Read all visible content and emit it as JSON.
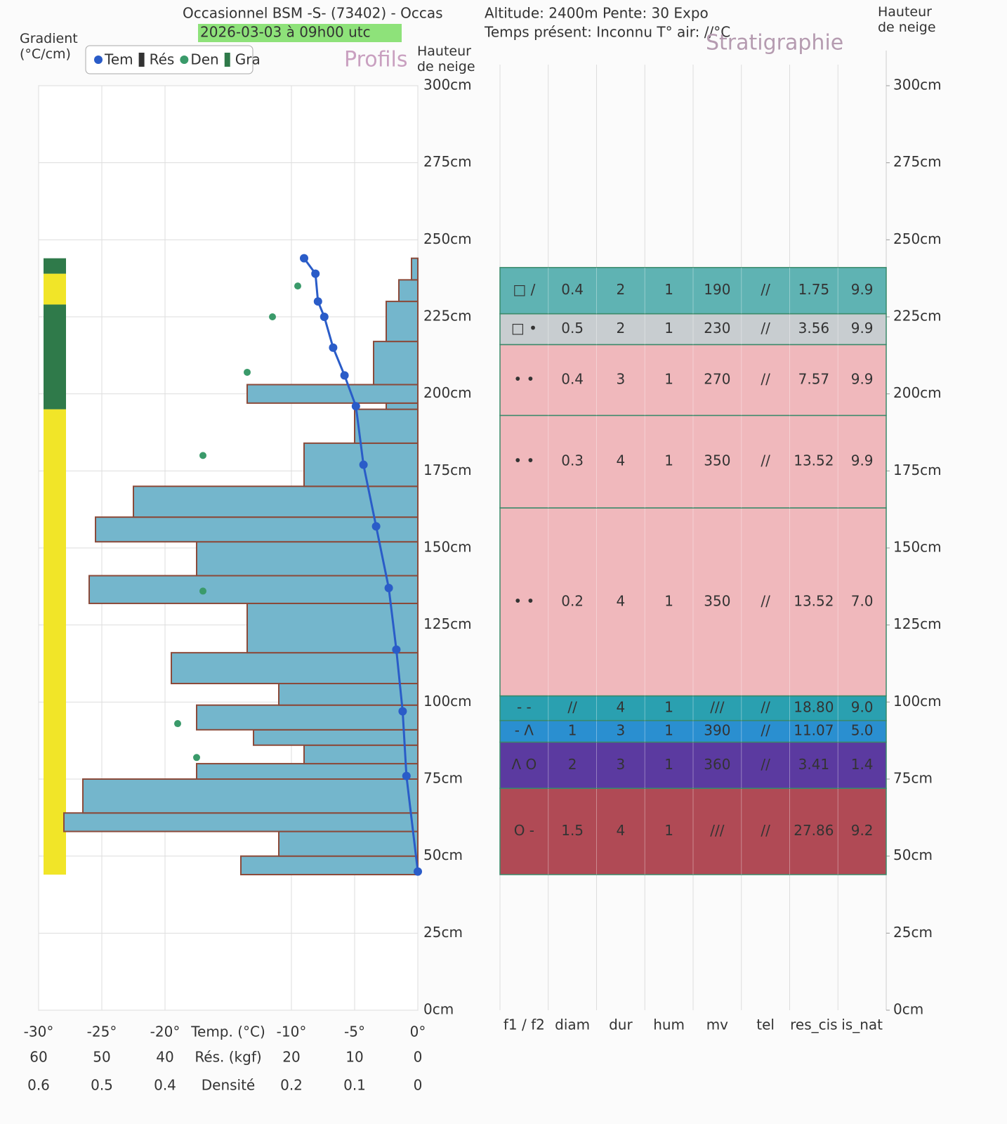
{
  "header": {
    "line1": "Occasionnel BSM -S- (73402) - Occas",
    "line2": "2026-03-03 à 09h00 utc",
    "line3": "Altitude: 2400m Pente: 30 Expo",
    "line4": "Temps présent: Inconnu T° air: //°C"
  },
  "chart_data": [
    {
      "type": "profile",
      "title": "Profils",
      "ylabel": "Hauteur de neige",
      "ylim": [
        0,
        300
      ],
      "yticks": [
        {
          "value": 0,
          "label": "0cm"
        },
        {
          "value": 25,
          "label": "25cm"
        },
        {
          "value": 50,
          "label": "50cm"
        },
        {
          "value": 75,
          "label": "75cm"
        },
        {
          "value": 100,
          "label": "100cm"
        },
        {
          "value": 125,
          "label": "125cm"
        },
        {
          "value": 150,
          "label": "150cm"
        },
        {
          "value": 175,
          "label": "175cm"
        },
        {
          "value": 200,
          "label": "200cm"
        },
        {
          "value": 225,
          "label": "225cm"
        },
        {
          "value": 250,
          "label": "250cm"
        },
        {
          "value": 275,
          "label": "275cm"
        },
        {
          "value": 300,
          "label": "300cm"
        }
      ],
      "grid": true,
      "temp_axis": {
        "label": "Temp. (°C)",
        "lim": [
          -30,
          0
        ],
        "ticks": [
          {
            "value": -30,
            "label": "-30°"
          },
          {
            "value": -25,
            "label": "-25°"
          },
          {
            "value": -20,
            "label": "-20°"
          },
          {
            "value": -10,
            "label": "-10°"
          },
          {
            "value": -5,
            "label": "-5°"
          },
          {
            "value": 0,
            "label": "0°"
          }
        ]
      },
      "res_axis": {
        "label": "Rés. (kgf)",
        "lim": [
          60,
          0
        ],
        "ticks": [
          60,
          50,
          40,
          20,
          10,
          0
        ]
      },
      "density_axis": {
        "label": "Densité",
        "lim": [
          0.6,
          0
        ],
        "ticks": [
          0.6,
          0.5,
          0.4,
          0.2,
          0.1,
          0
        ]
      },
      "temperature": {
        "name": "Tem",
        "color": "#2a5cc8",
        "heights": [
          244,
          239,
          230,
          225,
          215,
          206,
          196,
          177,
          157,
          137,
          117,
          97,
          76,
          45
        ],
        "values": [
          -9,
          -8.1,
          -7.9,
          -7.4,
          -6.7,
          -5.8,
          -4.9,
          -4.3,
          -3.3,
          -2.3,
          -1.7,
          -1.2,
          -0.9,
          0
        ]
      },
      "resistance": {
        "name": "Rés",
        "color": "#74b6cc",
        "edge": "#8b4a3a",
        "bins": [
          44,
          50,
          58,
          64,
          75,
          80,
          86,
          91,
          99,
          106,
          116,
          132,
          141,
          152,
          160,
          170,
          184,
          195,
          197,
          203,
          217,
          230,
          237,
          244
        ],
        "values": [
          28,
          22,
          56,
          53,
          35,
          18,
          26,
          35,
          22,
          39,
          27,
          52,
          35,
          51,
          45,
          18,
          10,
          5,
          27,
          7,
          5,
          3,
          1
        ]
      },
      "density": {
        "name": "Den",
        "color": "#3a9a6a",
        "heights": [
          235,
          225,
          207,
          180,
          136,
          93,
          82
        ],
        "values": [
          0.19,
          0.23,
          0.27,
          0.34,
          0.34,
          0.38,
          0.35
        ]
      },
      "gradient": {
        "name": "Gra",
        "title": "Gradient (°C/cm)",
        "bins": [
          44,
          195,
          229,
          239,
          244
        ],
        "colors": [
          "#f1e528",
          "#2f7a4a",
          "#f1e528",
          "#2f7a4a"
        ]
      }
    },
    {
      "type": "stratigraphy",
      "title": "Stratigraphie",
      "ylabel": "Hauteur de neige",
      "ylim": [
        0,
        300
      ],
      "yticks": [
        {
          "value": 0,
          "label": "0cm"
        },
        {
          "value": 25,
          "label": "25cm"
        },
        {
          "value": 50,
          "label": "50cm"
        },
        {
          "value": 75,
          "label": "75cm"
        },
        {
          "value": 100,
          "label": "100cm"
        },
        {
          "value": 125,
          "label": "125cm"
        },
        {
          "value": 150,
          "label": "150cm"
        },
        {
          "value": 175,
          "label": "175cm"
        },
        {
          "value": 200,
          "label": "200cm"
        },
        {
          "value": 225,
          "label": "225cm"
        },
        {
          "value": 250,
          "label": "250cm"
        },
        {
          "value": 275,
          "label": "275cm"
        },
        {
          "value": 300,
          "label": "300cm"
        }
      ],
      "columns": [
        "f1 / f2",
        "diam",
        "dur",
        "hum",
        "mv",
        "tel",
        "res_cis",
        "is_nat"
      ],
      "bins": [
        44,
        72,
        87,
        94,
        102,
        163,
        193,
        216,
        226,
        241
      ],
      "layers": [
        {
          "color": "#b04a55",
          "text_color": "#ffffff",
          "cells": [
            "O -",
            "1.5",
            "4",
            "1",
            "///",
            "//",
            "27.86",
            "9.2"
          ]
        },
        {
          "color": "#5b3aa0",
          "text_color": "#ffffff",
          "cells": [
            "Λ O",
            "2",
            "3",
            "1",
            "360",
            "//",
            "3.41",
            "1.4"
          ]
        },
        {
          "color": "#2a8fd0",
          "text_color": "#1a2a4a",
          "cells": [
            "- Λ",
            "1",
            "3",
            "1",
            "390",
            "//",
            "11.07",
            "5.0"
          ]
        },
        {
          "color": "#2aa0b0",
          "text_color": "#1a3a4a",
          "cells": [
            "- -",
            "//",
            "4",
            "1",
            "///",
            "//",
            "18.80",
            "9.0"
          ]
        },
        {
          "color": "#f0b8bc",
          "text_color": "#333333",
          "cells": [
            "• •",
            "0.2",
            "4",
            "1",
            "350",
            "//",
            "13.52",
            "7.0"
          ]
        },
        {
          "color": "#f0b8bc",
          "text_color": "#333333",
          "cells": [
            "• •",
            "0.3",
            "4",
            "1",
            "350",
            "//",
            "13.52",
            "9.9"
          ]
        },
        {
          "color": "#f0b8bc",
          "text_color": "#333333",
          "cells": [
            "• •",
            "0.4",
            "3",
            "1",
            "270",
            "//",
            "7.57",
            "9.9"
          ]
        },
        {
          "color": "#c8cdd0",
          "text_color": "#333333",
          "cells": [
            "□ •",
            "0.5",
            "2",
            "1",
            "230",
            "//",
            "3.56",
            "9.9"
          ]
        },
        {
          "color": "#5fb3b3",
          "text_color": "#333333",
          "cells": [
            "□ /",
            "0.4",
            "2",
            "1",
            "190",
            "//",
            "1.75",
            "9.9"
          ]
        }
      ]
    }
  ]
}
